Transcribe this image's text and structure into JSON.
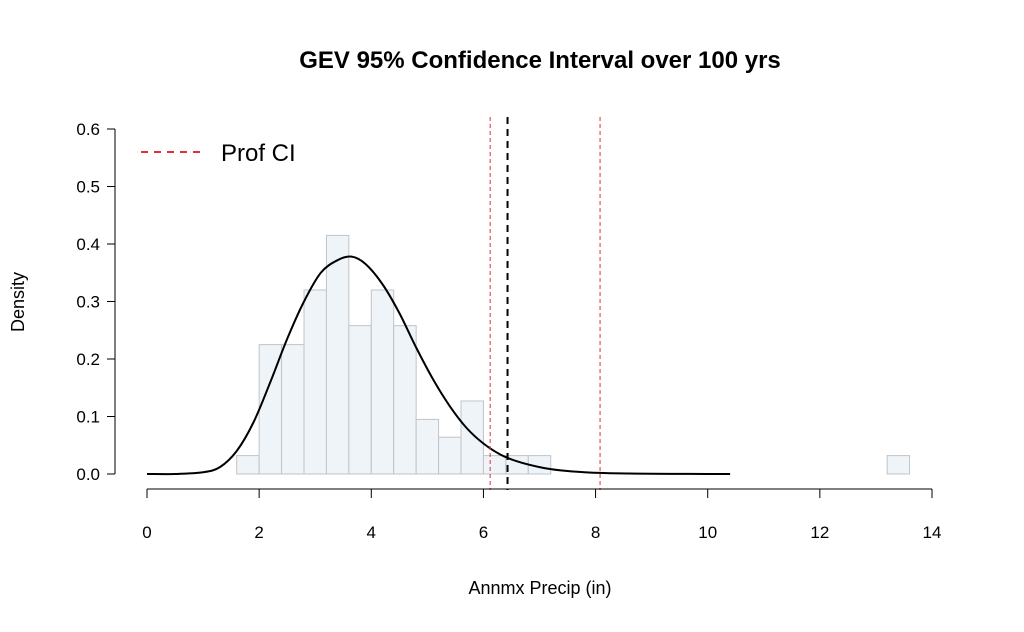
{
  "chart_data": {
    "type": "bar",
    "title": "GEV 95% Confidence Interval over 100 yrs",
    "xlabel": "Annmx Precip (in)",
    "ylabel": "Density",
    "xlim": [
      0,
      14
    ],
    "ylim": [
      0,
      0.6
    ],
    "x_ticks": [
      0,
      2,
      4,
      6,
      8,
      10,
      12,
      14
    ],
    "y_ticks": [
      0.0,
      0.1,
      0.2,
      0.3,
      0.4,
      0.5,
      0.6
    ],
    "x_tick_labels": [
      "0",
      "2",
      "4",
      "6",
      "8",
      "10",
      "12",
      "14"
    ],
    "y_tick_labels": [
      "0.0",
      "0.1",
      "0.2",
      "0.3",
      "0.4",
      "0.5",
      "0.6"
    ],
    "grid": false,
    "legend_position": "top-left",
    "histogram": {
      "bin_width": 0.4,
      "bins": [
        {
          "x0": 1.6,
          "density": 0.032
        },
        {
          "x0": 2.0,
          "density": 0.225
        },
        {
          "x0": 2.4,
          "density": 0.225
        },
        {
          "x0": 2.8,
          "density": 0.32
        },
        {
          "x0": 3.2,
          "density": 0.415
        },
        {
          "x0": 3.6,
          "density": 0.258
        },
        {
          "x0": 4.0,
          "density": 0.32
        },
        {
          "x0": 4.4,
          "density": 0.258
        },
        {
          "x0": 4.8,
          "density": 0.095
        },
        {
          "x0": 5.2,
          "density": 0.064
        },
        {
          "x0": 5.6,
          "density": 0.127
        },
        {
          "x0": 6.0,
          "density": 0.032
        },
        {
          "x0": 6.4,
          "density": 0.032
        },
        {
          "x0": 6.8,
          "density": 0.032
        },
        {
          "x0": 7.2,
          "density": 0.0
        },
        {
          "x0": 13.2,
          "density": 0.032
        }
      ],
      "fill_color": "#eef4f7",
      "edge_color": "#c0c4c8"
    },
    "density_curve": {
      "x": [
        0.0,
        0.5,
        1.0,
        1.3,
        1.6,
        1.9,
        2.2,
        2.5,
        2.8,
        3.1,
        3.4,
        3.65,
        3.9,
        4.2,
        4.5,
        4.8,
        5.1,
        5.4,
        5.7,
        6.0,
        6.3,
        6.6,
        7.0,
        7.4,
        7.8,
        8.2,
        8.6,
        9.0,
        9.5,
        10.0,
        10.4
      ],
      "y": [
        0.0,
        0.0,
        0.003,
        0.012,
        0.04,
        0.09,
        0.16,
        0.235,
        0.3,
        0.35,
        0.372,
        0.378,
        0.365,
        0.33,
        0.28,
        0.22,
        0.165,
        0.118,
        0.08,
        0.053,
        0.034,
        0.022,
        0.012,
        0.006,
        0.003,
        0.0015,
        0.0008,
        0.0004,
        0.0002,
        0.0001,
        0.0
      ],
      "color": "#000000"
    },
    "vlines": [
      {
        "x": 6.12,
        "color": "#e0303a",
        "style": "dashed",
        "role": "Prof CI lower"
      },
      {
        "x": 6.43,
        "color": "#000000",
        "style": "dashed",
        "role": "estimate"
      },
      {
        "x": 8.08,
        "color": "#e0303a",
        "style": "dashed",
        "role": "Prof CI upper"
      }
    ],
    "legend": [
      {
        "label": "Prof CI",
        "color": "#e0303a",
        "style": "dashed"
      }
    ]
  }
}
